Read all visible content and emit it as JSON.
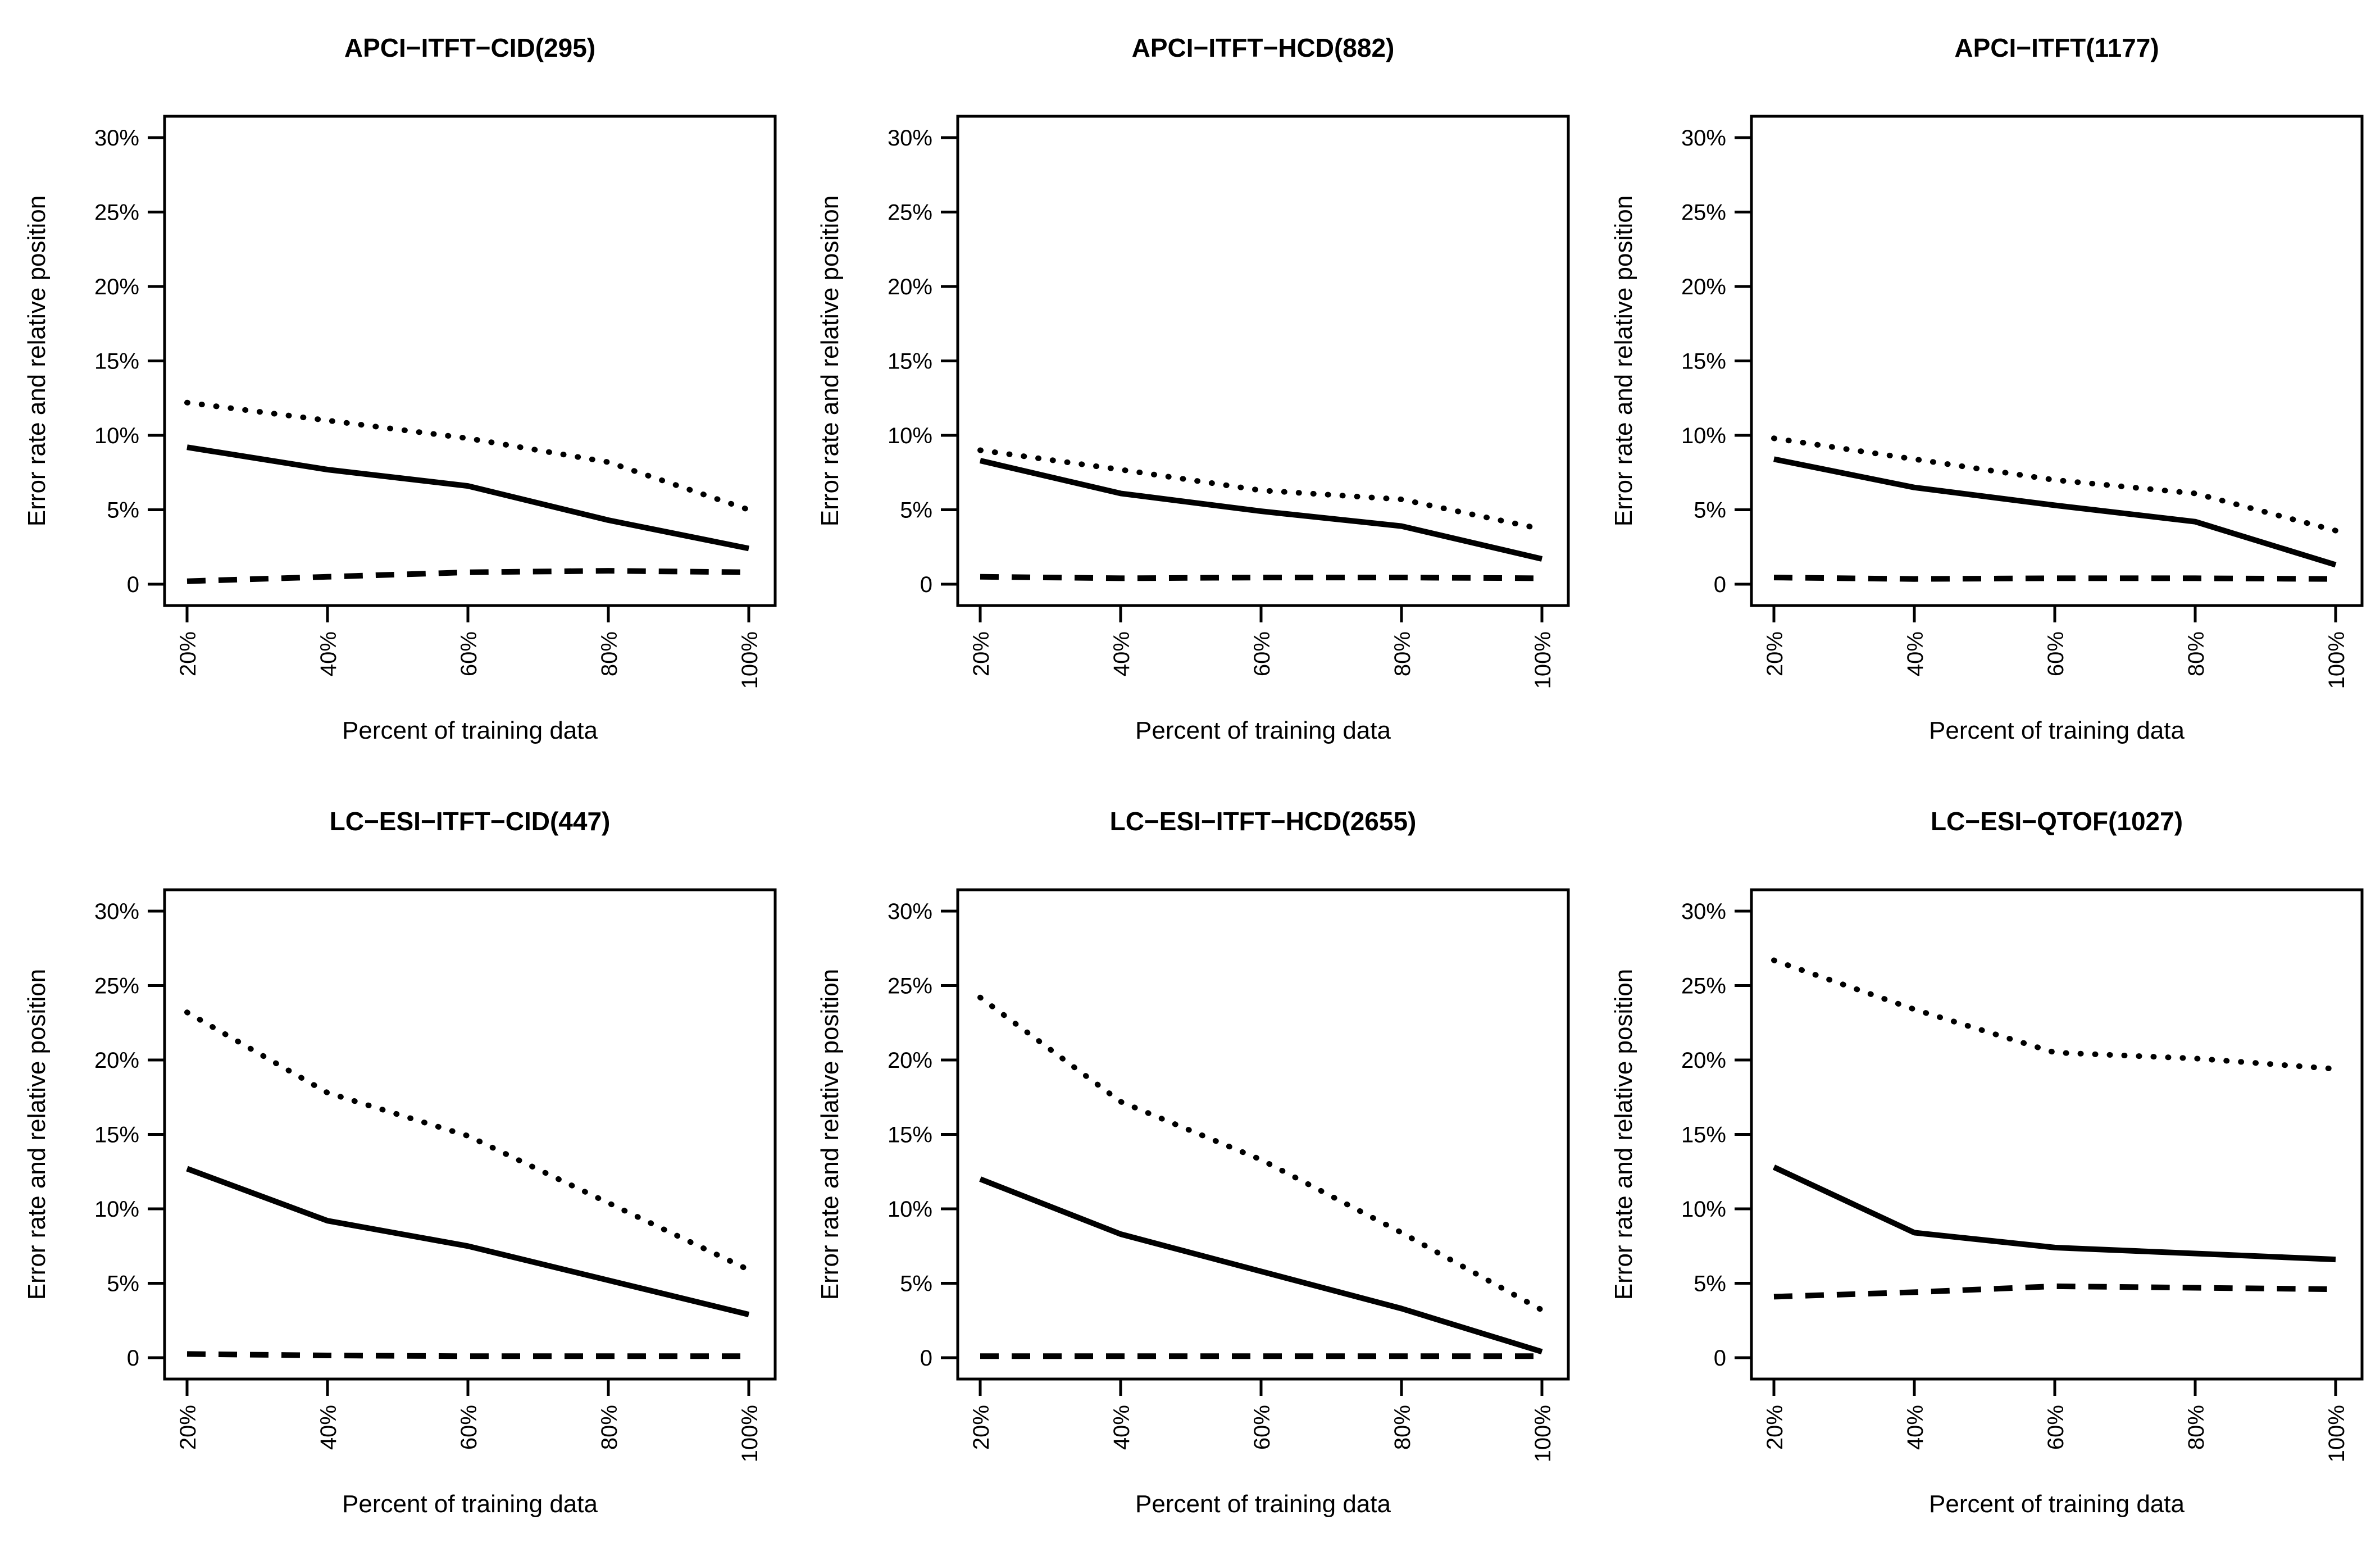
{
  "figure": {
    "background_color": "#ffffff",
    "line_color": "#000000",
    "x_axis_label": "Percent of training data",
    "y_axis_label": "Error rate and relative position",
    "x_tick_labels": [
      "20%",
      "40%",
      "60%",
      "80%",
      "100%"
    ],
    "y_tick_labels": [
      "0",
      "5%",
      "10%",
      "15%",
      "20%",
      "25%",
      "30%"
    ],
    "y_tick_values": [
      0,
      5,
      10,
      15,
      20,
      25,
      30
    ],
    "layout": {
      "rows": 2,
      "cols": 3,
      "grid": false,
      "legend": "none"
    }
  },
  "chart_data": [
    {
      "type": "line",
      "title": "APCI−ITFT−CID(295)",
      "xlabel": "Percent of training data",
      "ylabel": "Error rate and relative position",
      "x": [
        20,
        40,
        60,
        80,
        100
      ],
      "ylim": [
        0,
        30
      ],
      "series": [
        {
          "name": "dotted",
          "style": "dotted",
          "values": [
            12.2,
            11.0,
            9.8,
            8.2,
            5.0
          ]
        },
        {
          "name": "solid",
          "style": "solid",
          "values": [
            9.2,
            7.7,
            6.6,
            4.3,
            2.4
          ]
        },
        {
          "name": "dashed",
          "style": "dashed",
          "values": [
            0.2,
            0.5,
            0.8,
            0.9,
            0.8
          ]
        }
      ]
    },
    {
      "type": "line",
      "title": "APCI−ITFT−HCD(882)",
      "xlabel": "Percent of training data",
      "ylabel": "Error rate and relative position",
      "x": [
        20,
        40,
        60,
        80,
        100
      ],
      "ylim": [
        0,
        30
      ],
      "series": [
        {
          "name": "dotted",
          "style": "dotted",
          "values": [
            9.0,
            7.7,
            6.3,
            5.7,
            3.7
          ]
        },
        {
          "name": "solid",
          "style": "solid",
          "values": [
            8.3,
            6.1,
            4.9,
            3.9,
            1.7
          ]
        },
        {
          "name": "dashed",
          "style": "dashed",
          "values": [
            0.5,
            0.4,
            0.45,
            0.45,
            0.4
          ]
        }
      ]
    },
    {
      "type": "line",
      "title": "APCI−ITFT(1177)",
      "xlabel": "Percent of training data",
      "ylabel": "Error rate and relative position",
      "x": [
        20,
        40,
        60,
        80,
        100
      ],
      "ylim": [
        0,
        30
      ],
      "series": [
        {
          "name": "dotted",
          "style": "dotted",
          "values": [
            9.8,
            8.4,
            7.0,
            6.1,
            3.6
          ]
        },
        {
          "name": "solid",
          "style": "solid",
          "values": [
            8.4,
            6.5,
            5.3,
            4.2,
            1.3
          ]
        },
        {
          "name": "dashed",
          "style": "dashed",
          "values": [
            0.45,
            0.35,
            0.4,
            0.4,
            0.35
          ]
        }
      ]
    },
    {
      "type": "line",
      "title": "LC−ESI−ITFT−CID(447)",
      "xlabel": "Percent of training data",
      "ylabel": "Error rate and relative position",
      "x": [
        20,
        40,
        60,
        80,
        100
      ],
      "ylim": [
        0,
        30
      ],
      "series": [
        {
          "name": "dotted",
          "style": "dotted",
          "values": [
            23.2,
            17.8,
            14.9,
            10.4,
            5.9
          ]
        },
        {
          "name": "solid",
          "style": "solid",
          "values": [
            12.7,
            9.2,
            7.5,
            5.2,
            2.9
          ]
        },
        {
          "name": "dashed",
          "style": "dashed",
          "values": [
            0.25,
            0.15,
            0.1,
            0.1,
            0.1
          ]
        }
      ]
    },
    {
      "type": "line",
      "title": "LC−ESI−ITFT−HCD(2655)",
      "xlabel": "Percent of training data",
      "ylabel": "Error rate and relative position",
      "x": [
        20,
        40,
        60,
        80,
        100
      ],
      "ylim": [
        0,
        30
      ],
      "series": [
        {
          "name": "dotted",
          "style": "dotted",
          "values": [
            24.2,
            17.2,
            13.3,
            8.4,
            3.2
          ]
        },
        {
          "name": "solid",
          "style": "solid",
          "values": [
            12.0,
            8.3,
            5.8,
            3.3,
            0.4
          ]
        },
        {
          "name": "dashed",
          "style": "dashed",
          "values": [
            0.1,
            0.1,
            0.1,
            0.1,
            0.1
          ]
        }
      ]
    },
    {
      "type": "line",
      "title": "LC−ESI−QTOF(1027)",
      "xlabel": "Percent of training data",
      "ylabel": "Error rate and relative position",
      "x": [
        20,
        40,
        60,
        80,
        100
      ],
      "ylim": [
        0,
        30
      ],
      "series": [
        {
          "name": "dotted",
          "style": "dotted",
          "values": [
            26.7,
            23.4,
            20.5,
            20.1,
            19.4
          ]
        },
        {
          "name": "solid",
          "style": "solid",
          "values": [
            12.8,
            8.4,
            7.4,
            7.0,
            6.6
          ]
        },
        {
          "name": "dashed",
          "style": "dashed",
          "values": [
            4.1,
            4.4,
            4.8,
            4.7,
            4.6
          ]
        }
      ]
    }
  ]
}
